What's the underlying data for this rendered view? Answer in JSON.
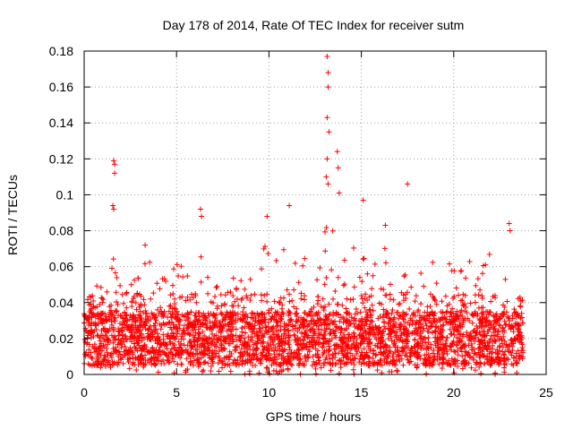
{
  "chart_data": {
    "type": "scatter",
    "title": "Day 178 of 2014, Rate Of TEC Index for receiver sutm",
    "xlabel": "GPS time / hours",
    "ylabel": "ROTI / TECUs",
    "xlim": [
      0,
      25
    ],
    "ylim": [
      0,
      0.18
    ],
    "xticks": [
      0,
      5,
      10,
      15,
      20,
      25
    ],
    "xtick_labels": [
      "0",
      "5",
      "10",
      "15",
      "20",
      "25"
    ],
    "yticks": [
      0,
      0.02,
      0.04,
      0.06,
      0.08,
      0.1,
      0.12,
      0.14,
      0.16,
      0.18
    ],
    "ytick_labels": [
      "0",
      "0.02",
      "0.04",
      "0.06",
      "0.08",
      "0.1",
      "0.12",
      "0.14",
      "0.16",
      "0.18"
    ],
    "grid": true,
    "marker": "+",
    "color": "#ff0000",
    "series": [
      {
        "name": "ROTI",
        "x_range_hours": [
          0,
          23.75
        ],
        "dense_band": [
          0.005,
          0.045
        ],
        "notable_points": [
          {
            "x": 1.6,
            "y": 0.119
          },
          {
            "x": 1.65,
            "y": 0.117
          },
          {
            "x": 1.65,
            "y": 0.112
          },
          {
            "x": 1.55,
            "y": 0.094
          },
          {
            "x": 1.6,
            "y": 0.092
          },
          {
            "x": 3.3,
            "y": 0.072
          },
          {
            "x": 6.3,
            "y": 0.092
          },
          {
            "x": 6.35,
            "y": 0.088
          },
          {
            "x": 9.9,
            "y": 0.088
          },
          {
            "x": 11.1,
            "y": 0.094
          },
          {
            "x": 13.15,
            "y": 0.177
          },
          {
            "x": 13.2,
            "y": 0.168
          },
          {
            "x": 13.2,
            "y": 0.16
          },
          {
            "x": 13.15,
            "y": 0.143
          },
          {
            "x": 13.25,
            "y": 0.135
          },
          {
            "x": 13.15,
            "y": 0.12
          },
          {
            "x": 13.1,
            "y": 0.11
          },
          {
            "x": 13.2,
            "y": 0.106
          },
          {
            "x": 13.7,
            "y": 0.124
          },
          {
            "x": 13.75,
            "y": 0.115
          },
          {
            "x": 13.8,
            "y": 0.101
          },
          {
            "x": 15.1,
            "y": 0.097
          },
          {
            "x": 16.3,
            "y": 0.083
          },
          {
            "x": 17.5,
            "y": 0.106
          },
          {
            "x": 23.0,
            "y": 0.084
          },
          {
            "x": 23.05,
            "y": 0.08
          }
        ]
      }
    ]
  }
}
